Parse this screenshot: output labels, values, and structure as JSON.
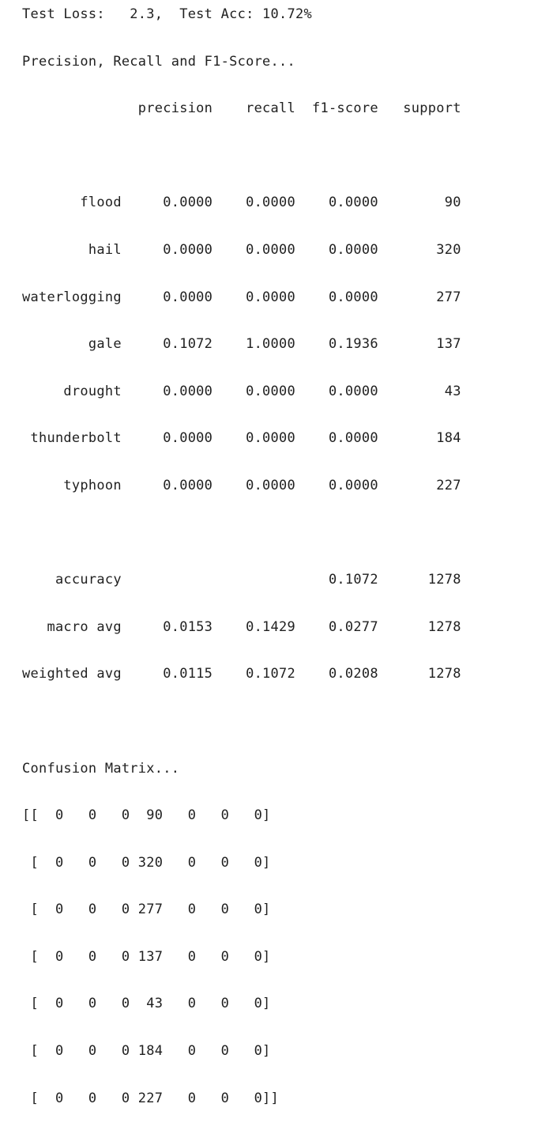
{
  "output": {
    "lines": [
      "Test Loss:   2.3,  Test Acc: 10.72%",
      "Precision, Recall and F1-Score...",
      "              precision    recall  f1-score   support",
      "",
      "       flood     0.0000    0.0000    0.0000        90",
      "        hail     0.0000    0.0000    0.0000       320",
      "waterlogging     0.0000    0.0000    0.0000       277",
      "        gale     0.1072    1.0000    0.1936       137",
      "     drought     0.0000    0.0000    0.0000        43",
      " thunderbolt     0.0000    0.0000    0.0000       184",
      "     typhoon     0.0000    0.0000    0.0000       227",
      "",
      "    accuracy                         0.1072      1278",
      "   macro avg     0.0153    0.1429    0.0277      1278",
      "weighted avg     0.0115    0.1072    0.0208      1278",
      "",
      "Confusion Matrix...",
      "[[  0   0   0  90   0   0   0]",
      " [  0   0   0 320   0   0   0]",
      " [  0   0   0 277   0   0   0]",
      " [  0   0   0 137   0   0   0]",
      " [  0   0   0  43   0   0   0]",
      " [  0   0   0 184   0   0   0]",
      " [  0   0   0 227   0   0   0]]"
    ]
  }
}
